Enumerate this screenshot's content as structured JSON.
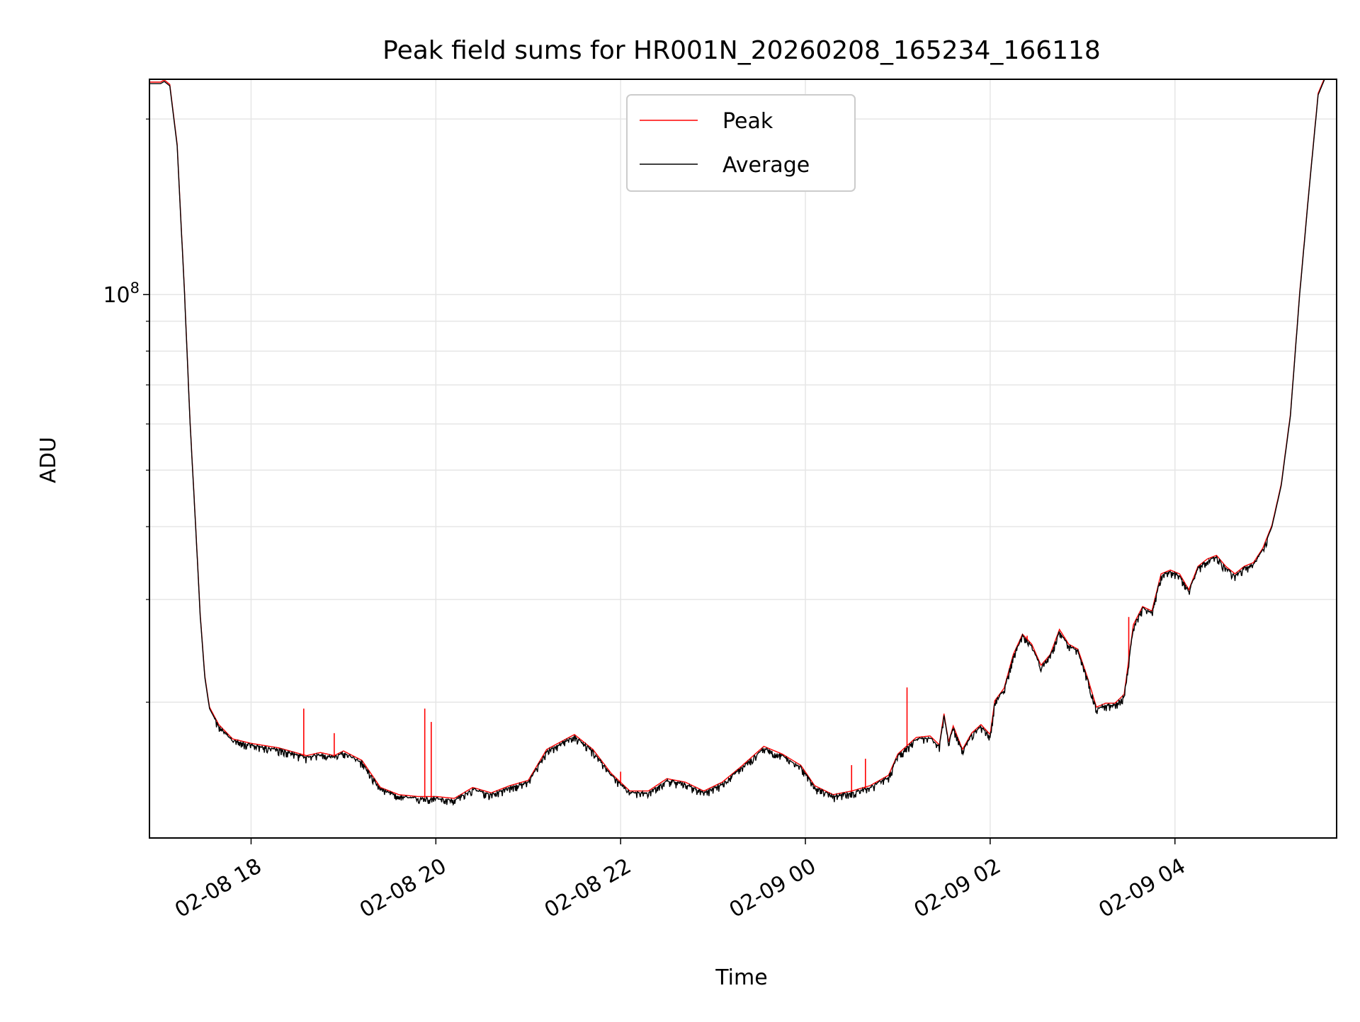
{
  "chart_data": {
    "type": "line",
    "title": "Peak field sums for HR001N_20260208_165234_166118",
    "xlabel": "Time",
    "ylabel": "ADU",
    "yscale": "log",
    "y_tick_label": "10",
    "y_tick_exponent": "8",
    "y_major_tick": 100000000,
    "y_minor_ticks": [
      20000000,
      30000000,
      40000000,
      50000000,
      60000000,
      70000000,
      80000000,
      90000000,
      200000000
    ],
    "ylim": [
      11700000,
      234000000
    ],
    "xlim_hours": [
      -1.1,
      11.75
    ],
    "x_ticks": [
      {
        "hours": 0,
        "label": "02-08 18"
      },
      {
        "hours": 2,
        "label": "02-08 20"
      },
      {
        "hours": 4,
        "label": "02-08 22"
      },
      {
        "hours": 6,
        "label": "02-09 00"
      },
      {
        "hours": 8,
        "label": "02-09 02"
      },
      {
        "hours": 10,
        "label": "02-09 04"
      }
    ],
    "grid": true,
    "legend_position": "top-center",
    "series": [
      {
        "name": "Peak",
        "color": "#ff0000"
      },
      {
        "name": "Average",
        "color": "#000000"
      }
    ],
    "average_keypoints": [
      [
        -1.1,
        230000000
      ],
      [
        -0.98,
        230000000
      ],
      [
        -0.94,
        232000000
      ],
      [
        -0.88,
        228000000
      ],
      [
        -0.8,
        180000000
      ],
      [
        -0.72,
        100000000
      ],
      [
        -0.66,
        60000000
      ],
      [
        -0.6,
        40000000
      ],
      [
        -0.55,
        28000000
      ],
      [
        -0.5,
        22000000
      ],
      [
        -0.45,
        19500000
      ],
      [
        -0.35,
        18200000
      ],
      [
        -0.2,
        17200000
      ],
      [
        0.0,
        16900000
      ],
      [
        0.3,
        16600000
      ],
      [
        0.6,
        16100000
      ],
      [
        0.75,
        16300000
      ],
      [
        0.9,
        16100000
      ],
      [
        1.0,
        16400000
      ],
      [
        1.2,
        15800000
      ],
      [
        1.4,
        14200000
      ],
      [
        1.6,
        13800000
      ],
      [
        1.8,
        13700000
      ],
      [
        2.0,
        13700000
      ],
      [
        2.2,
        13600000
      ],
      [
        2.4,
        14200000
      ],
      [
        2.6,
        13900000
      ],
      [
        2.8,
        14300000
      ],
      [
        3.0,
        14600000
      ],
      [
        3.2,
        16500000
      ],
      [
        3.5,
        17500000
      ],
      [
        3.7,
        16500000
      ],
      [
        3.9,
        15000000
      ],
      [
        4.1,
        14000000
      ],
      [
        4.3,
        14000000
      ],
      [
        4.5,
        14700000
      ],
      [
        4.7,
        14500000
      ],
      [
        4.9,
        14000000
      ],
      [
        5.1,
        14500000
      ],
      [
        5.3,
        15400000
      ],
      [
        5.55,
        16700000
      ],
      [
        5.75,
        16200000
      ],
      [
        5.95,
        15500000
      ],
      [
        6.1,
        14300000
      ],
      [
        6.3,
        13800000
      ],
      [
        6.5,
        14000000
      ],
      [
        6.7,
        14300000
      ],
      [
        6.9,
        14900000
      ],
      [
        7.0,
        16200000
      ],
      [
        7.2,
        17300000
      ],
      [
        7.35,
        17400000
      ],
      [
        7.45,
        16800000
      ],
      [
        7.5,
        19000000
      ],
      [
        7.55,
        17000000
      ],
      [
        7.6,
        18100000
      ],
      [
        7.7,
        16500000
      ],
      [
        7.8,
        17600000
      ],
      [
        7.9,
        18200000
      ],
      [
        8.0,
        17500000
      ],
      [
        8.05,
        20000000
      ],
      [
        8.15,
        21000000
      ],
      [
        8.25,
        24000000
      ],
      [
        8.35,
        26000000
      ],
      [
        8.45,
        25000000
      ],
      [
        8.55,
        23000000
      ],
      [
        8.65,
        24000000
      ],
      [
        8.75,
        26500000
      ],
      [
        8.85,
        25000000
      ],
      [
        8.95,
        24500000
      ],
      [
        9.05,
        22000000
      ],
      [
        9.15,
        19500000
      ],
      [
        9.25,
        19800000
      ],
      [
        9.35,
        19800000
      ],
      [
        9.45,
        20500000
      ],
      [
        9.55,
        27000000
      ],
      [
        9.65,
        29000000
      ],
      [
        9.75,
        28500000
      ],
      [
        9.85,
        33000000
      ],
      [
        9.95,
        33500000
      ],
      [
        10.05,
        33000000
      ],
      [
        10.15,
        31000000
      ],
      [
        10.25,
        34000000
      ],
      [
        10.35,
        35000000
      ],
      [
        10.45,
        35500000
      ],
      [
        10.55,
        34000000
      ],
      [
        10.65,
        33000000
      ],
      [
        10.75,
        34000000
      ],
      [
        10.85,
        34500000
      ],
      [
        10.95,
        36500000
      ],
      [
        11.05,
        40000000
      ],
      [
        11.15,
        47000000
      ],
      [
        11.25,
        62000000
      ],
      [
        11.35,
        100000000
      ],
      [
        11.45,
        150000000
      ],
      [
        11.55,
        220000000
      ],
      [
        11.62,
        234000000
      ]
    ],
    "peak_spikes": [
      [
        0.57,
        19500000
      ],
      [
        0.9,
        17700000
      ],
      [
        1.88,
        19500000
      ],
      [
        1.95,
        18500000
      ],
      [
        4.0,
        15200000
      ],
      [
        7.1,
        21200000
      ],
      [
        8.4,
        26000000
      ],
      [
        9.5,
        28000000
      ],
      [
        6.5,
        15600000
      ],
      [
        6.65,
        16000000
      ]
    ]
  }
}
